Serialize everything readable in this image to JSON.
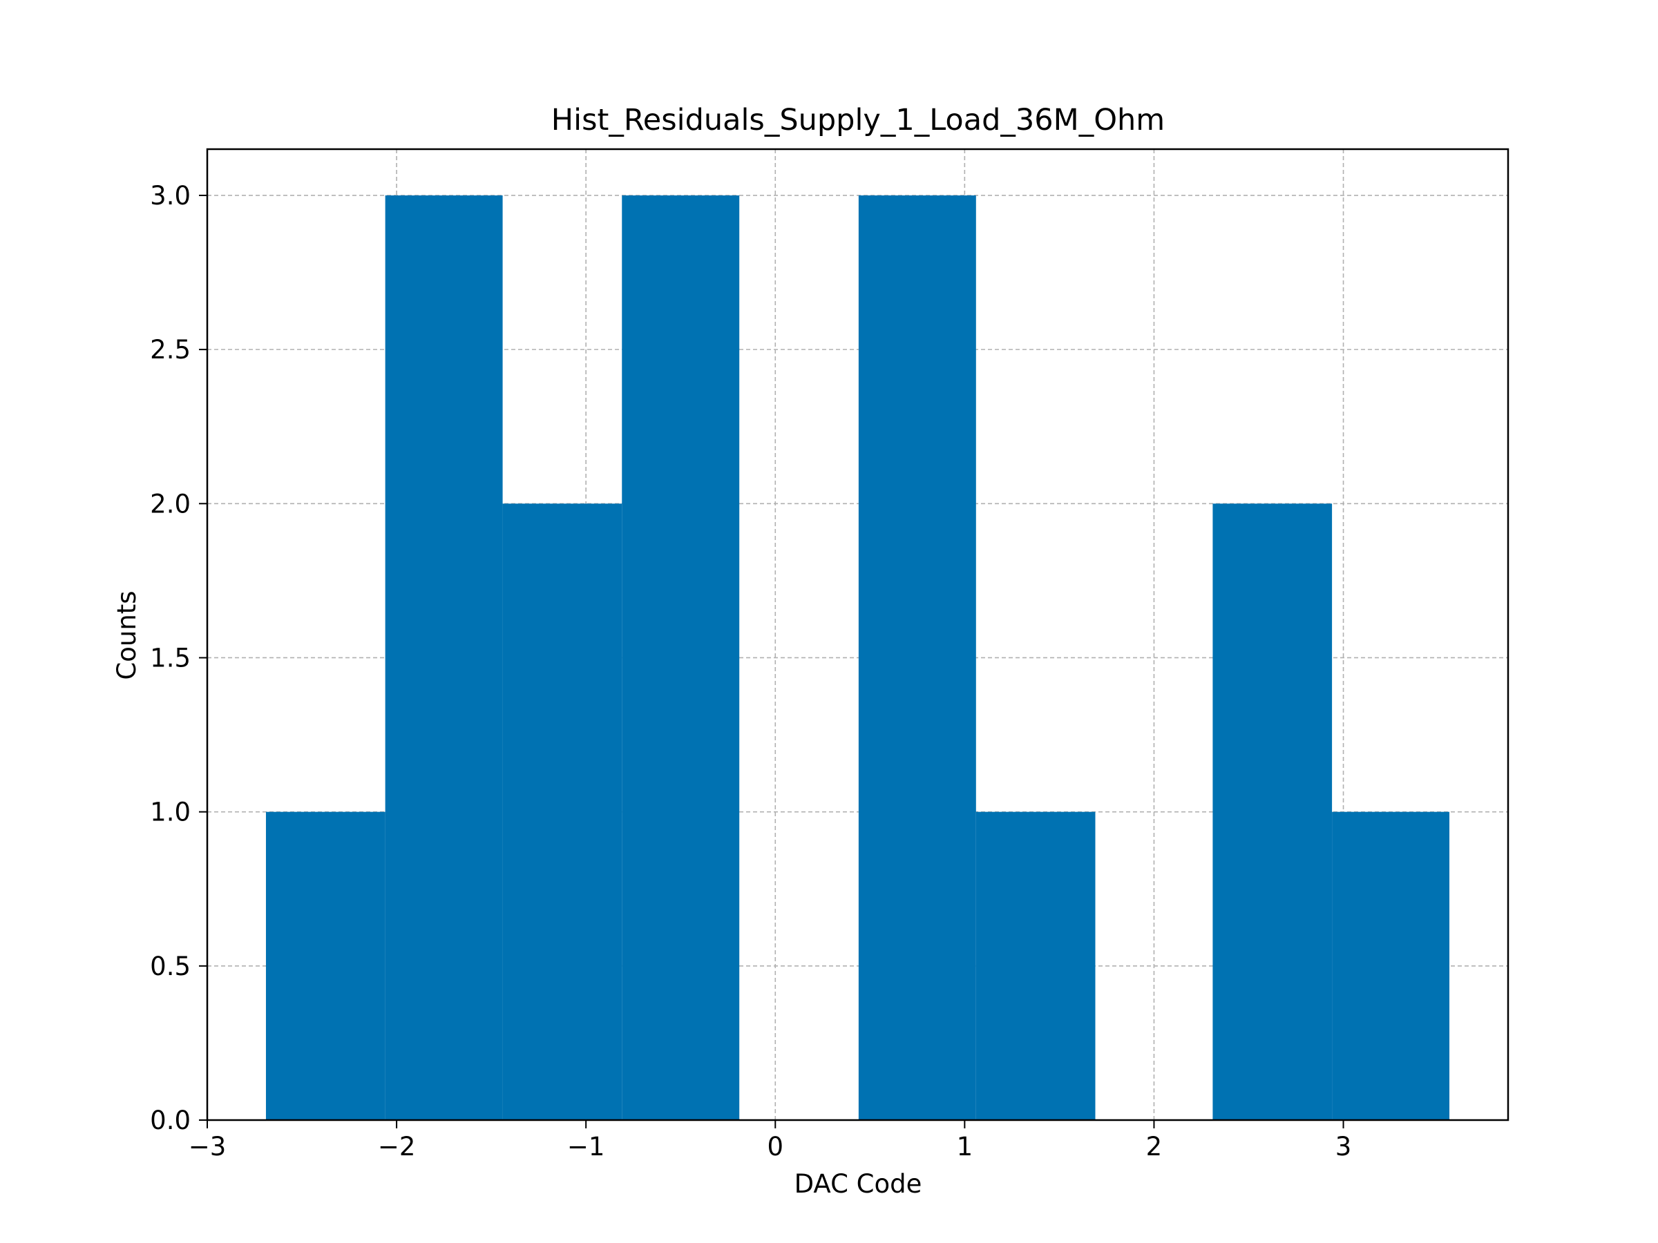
{
  "chart_data": {
    "type": "bar",
    "title": "Hist_Residuals_Supply_1_Load_36M_Ohm",
    "xlabel": "DAC Code",
    "ylabel": "Counts",
    "xlim": [
      -3.0,
      3.87
    ],
    "ylim": [
      0,
      3.15
    ],
    "x_ticks": [
      -3,
      -2,
      -1,
      0,
      1,
      2,
      3
    ],
    "x_tick_labels": [
      "−3",
      "−2",
      "−1",
      "0",
      "1",
      "2",
      "3"
    ],
    "y_ticks": [
      0.0,
      0.5,
      1.0,
      1.5,
      2.0,
      2.5,
      3.0
    ],
    "y_tick_labels": [
      "0.0",
      "0.5",
      "1.0",
      "1.5",
      "2.0",
      "2.5",
      "3.0"
    ],
    "grid": true,
    "bar_color": "#0072b2",
    "bins": [
      {
        "x0": -2.69,
        "x1": -2.06,
        "count": 1
      },
      {
        "x0": -2.06,
        "x1": -1.44,
        "count": 3
      },
      {
        "x0": -1.44,
        "x1": -0.81,
        "count": 2
      },
      {
        "x0": -0.81,
        "x1": -0.19,
        "count": 3
      },
      {
        "x0": -0.19,
        "x1": 0.44,
        "count": 0
      },
      {
        "x0": 0.44,
        "x1": 1.06,
        "count": 3
      },
      {
        "x0": 1.06,
        "x1": 1.69,
        "count": 1
      },
      {
        "x0": 1.69,
        "x1": 2.31,
        "count": 0
      },
      {
        "x0": 2.31,
        "x1": 2.94,
        "count": 2
      },
      {
        "x0": 2.94,
        "x1": 3.56,
        "count": 1
      }
    ]
  }
}
